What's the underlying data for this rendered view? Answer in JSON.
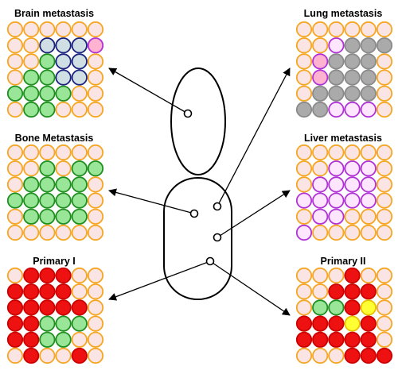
{
  "colors": {
    "empty_fill": "#fbe4e4",
    "empty_stroke": "#f5a623",
    "arrow": "#000000",
    "body_stroke": "#000000"
  },
  "cell_types": {
    "o": {
      "fill": "#fbe4e4",
      "stroke": "#f5a623"
    },
    "s": {
      "fill": "#cfdfe3",
      "stroke": "#1a237e"
    },
    "g": {
      "fill": "#99e699",
      "stroke": "#1f8f1f"
    },
    "r": {
      "fill": "#ee1111",
      "stroke": "#cc0000"
    },
    "y": {
      "fill": "#ffff33",
      "stroke": "#e6c200"
    },
    "p": {
      "fill": "#ffb3d1",
      "stroke": "#b033d6"
    },
    "k": {
      "fill": "#aaaaaa",
      "stroke": "#8a8a8a"
    },
    "v": {
      "fill": "#ffe6ff",
      "stroke": "#b033d6"
    }
  },
  "panels": [
    {
      "id": "brain",
      "title": "Brain metastasis",
      "grid": [
        "oooooo",
        "oosssp",
        "oogsso",
        "oggsso",
        "ggggoo",
        "oggooo"
      ]
    },
    {
      "id": "bone",
      "title": "Bone Metastasis",
      "grid": [
        "oooooo",
        "oogogg",
        "oggggo",
        "gggggo",
        "oggggo",
        "oooooo"
      ]
    },
    {
      "id": "primary1",
      "title": "Primary I",
      "grid": [
        "orrroo",
        "rrrroo",
        "rrrrro",
        "rrgggo",
        "rrggoo",
        "orooro"
      ]
    },
    {
      "id": "lung",
      "title": "Lung metastasis",
      "grid": [
        "oooooo",
        "oovkkk",
        "opkkko",
        "opkkko",
        "okkkko",
        "kkvvvo"
      ]
    },
    {
      "id": "liver",
      "title": "Liver metastasis",
      "grid": [
        "oooooo",
        "oovvvo",
        "ovvvvo",
        "vvvvvo",
        "ovvooo",
        "vooooo"
      ]
    },
    {
      "id": "primary2",
      "title": "Primary II",
      "grid": [
        "oooroo",
        "oorrro",
        "oggryo",
        "rrryro",
        "rrrrro",
        "ooorrr"
      ]
    }
  ]
}
